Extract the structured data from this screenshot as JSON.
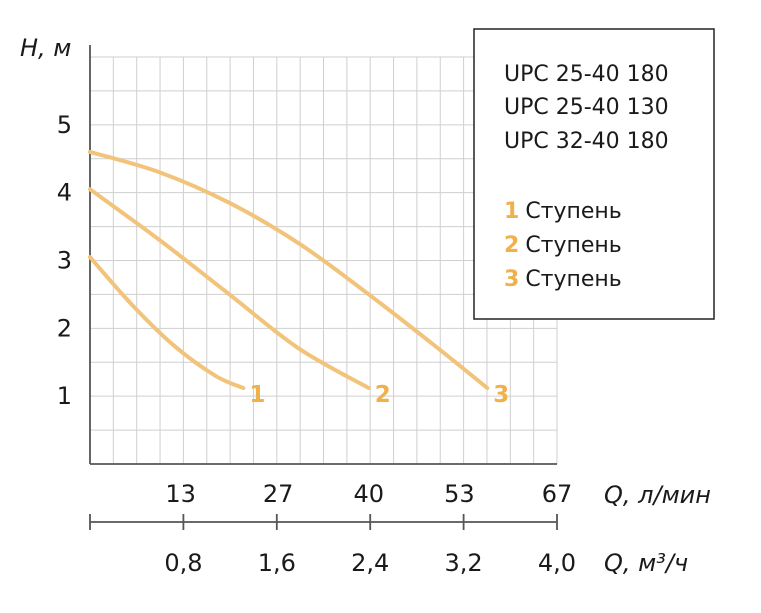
{
  "chart_data": {
    "type": "line",
    "ylabel": "H, м",
    "xlabel": "Q, л/мин",
    "x2label": "Q, м³/ч",
    "ylim": [
      0,
      6
    ],
    "xlim": [
      0,
      67
    ],
    "yticks": [
      "1",
      "2",
      "3",
      "4",
      "5"
    ],
    "xticks": [
      {
        "value": 13,
        "label": "13"
      },
      {
        "value": 27,
        "label": "27"
      },
      {
        "value": 40,
        "label": "40"
      },
      {
        "value": 53,
        "label": "53"
      },
      {
        "value": 67,
        "label": "67"
      }
    ],
    "x2ticks": [
      {
        "value": 0.8,
        "label": "0,8"
      },
      {
        "value": 1.6,
        "label": "1,6"
      },
      {
        "value": 2.4,
        "label": "2,4"
      },
      {
        "value": 3.2,
        "label": "3,2"
      },
      {
        "value": 4.0,
        "label": "4,0"
      }
    ],
    "grid": true,
    "series": [
      {
        "name": "1",
        "color": "#f2c37a",
        "x": [
          0,
          6,
          12,
          18,
          22
        ],
        "y": [
          3.05,
          2.35,
          1.75,
          1.3,
          1.12
        ]
      },
      {
        "name": "2",
        "color": "#f2c37a",
        "x": [
          0,
          10,
          20,
          30,
          40
        ],
        "y": [
          4.05,
          3.3,
          2.5,
          1.7,
          1.12
        ]
      },
      {
        "name": "3",
        "color": "#f2c37a",
        "x": [
          0,
          10,
          20,
          30,
          40,
          50,
          57
        ],
        "y": [
          4.6,
          4.3,
          3.85,
          3.25,
          2.5,
          1.7,
          1.12
        ]
      }
    ]
  },
  "legend": {
    "models": [
      "UPC 25-40 180",
      "UPC 25-40 130",
      "UPC 32-40 180"
    ],
    "steps": [
      {
        "num": "1",
        "text": "Ступень"
      },
      {
        "num": "2",
        "text": "Ступень"
      },
      {
        "num": "3",
        "text": "Ступень"
      }
    ]
  },
  "colors": {
    "curve": "#f2c37a",
    "label": "#f0b04a",
    "grid": "#cfcfcf",
    "axis": "#555555"
  }
}
